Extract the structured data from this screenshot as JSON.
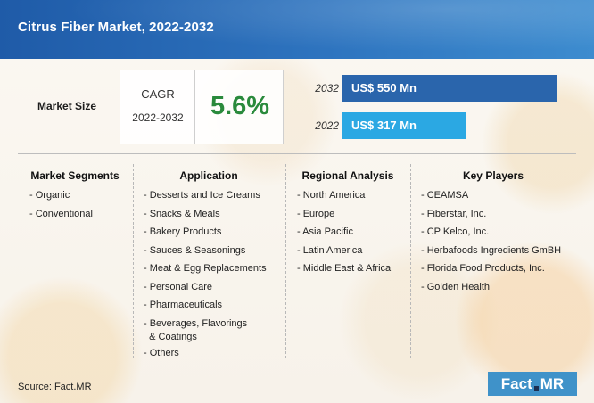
{
  "title": "Citrus Fiber Market, 2022-2032",
  "market_size_label": "Market Size",
  "cagr": {
    "label": "CAGR",
    "period": "2022-2032",
    "value": "5.6%"
  },
  "chart_data": {
    "type": "bar",
    "orientation": "horizontal",
    "categories": [
      "2032",
      "2022"
    ],
    "values": [
      550,
      317
    ],
    "value_labels": [
      "US$ 550 Mn",
      "US$ 317 Mn"
    ],
    "colors": [
      "#2a65ac",
      "#2ba8e3"
    ]
  },
  "segments": {
    "market_segments": {
      "title": "Market Segments",
      "items": [
        "- Organic",
        "- Conventional"
      ]
    },
    "application": {
      "title": "Application",
      "items": [
        "- Desserts and Ice Creams",
        "- Snacks & Meals",
        "- Bakery Products",
        "- Sauces & Seasonings",
        "- Meat & Egg Replacements",
        "- Personal Care",
        "- Pharmaceuticals",
        "- Beverages, Flavorings\n  & Coatings",
        "- Others"
      ]
    },
    "regional": {
      "title": "Regional Analysis",
      "items": [
        "- North America",
        "- Europe",
        "- Asia Pacific",
        "- Latin America",
        "- Middle East & Africa"
      ]
    },
    "players": {
      "title": "Key Players",
      "items": [
        "- CEAMSA",
        "- Fiberstar, Inc.",
        "- CP Kelco, Inc.",
        "- Herbafoods Ingredients GmBH",
        "- Florida Food Products, Inc.",
        "- Golden Health"
      ]
    }
  },
  "source": "Source: Fact.MR",
  "logo": {
    "left": "Fact",
    "right": "MR"
  }
}
